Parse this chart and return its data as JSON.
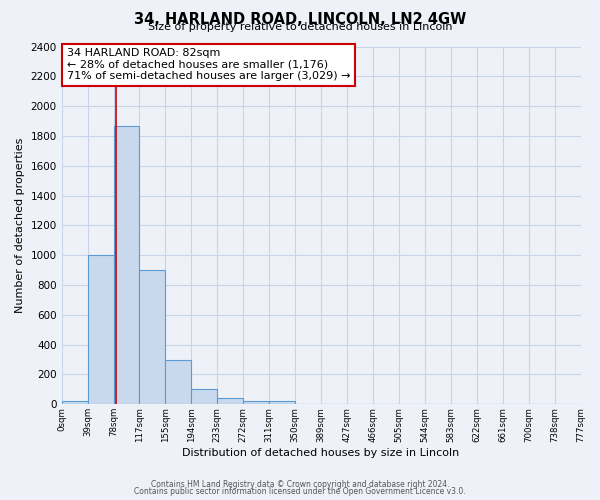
{
  "title": "34, HARLAND ROAD, LINCOLN, LN2 4GW",
  "subtitle": "Size of property relative to detached houses in Lincoln",
  "xlabel": "Distribution of detached houses by size in Lincoln",
  "ylabel": "Number of detached properties",
  "bin_labels": [
    "0sqm",
    "39sqm",
    "78sqm",
    "117sqm",
    "155sqm",
    "194sqm",
    "233sqm",
    "272sqm",
    "311sqm",
    "350sqm",
    "389sqm",
    "427sqm",
    "466sqm",
    "505sqm",
    "544sqm",
    "583sqm",
    "622sqm",
    "661sqm",
    "700sqm",
    "738sqm",
    "777sqm"
  ],
  "bar_values": [
    20,
    1000,
    1870,
    900,
    300,
    100,
    40,
    25,
    20,
    0,
    0,
    0,
    0,
    0,
    0,
    0,
    0,
    0,
    0,
    0
  ],
  "bar_color": "#c9d9ed",
  "bar_edge_color": "#5b9bd5",
  "red_line_x": 82,
  "annotation_title": "34 HARLAND ROAD: 82sqm",
  "annotation_line1": "← 28% of detached houses are smaller (1,176)",
  "annotation_line2": "71% of semi-detached houses are larger (3,029) →",
  "annotation_box_edge": "#cc0000",
  "ylim": [
    0,
    2400
  ],
  "yticks": [
    0,
    200,
    400,
    600,
    800,
    1000,
    1200,
    1400,
    1600,
    1800,
    2000,
    2200,
    2400
  ],
  "footer1": "Contains HM Land Registry data © Crown copyright and database right 2024.",
  "footer2": "Contains public sector information licensed under the Open Government Licence v3.0.",
  "bg_color": "#eef2f8",
  "plot_bg_color": "#eef2f8",
  "grid_color": "#c8d4e8"
}
